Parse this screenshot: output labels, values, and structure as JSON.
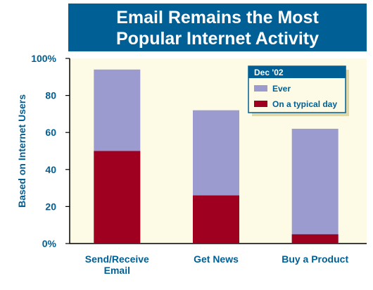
{
  "title_lines": [
    "Email Remains the Most",
    "Popular Internet Activity"
  ],
  "colors": {
    "title_bg": "#005f94",
    "title_text": "#ffffff",
    "plot_bg": "#fdfbe6",
    "ever": "#9b9bcf",
    "typical": "#a0001f",
    "axis_text": "#005f94",
    "legend_header_bg": "#005f94",
    "legend_shadow": "#e0d8a8"
  },
  "chart_data": {
    "type": "bar",
    "stacked": "overlay",
    "categories": [
      [
        "Send/Receive",
        "Email"
      ],
      [
        "Get News"
      ],
      [
        "Buy a Product"
      ]
    ],
    "series": [
      {
        "name": "Ever",
        "values": [
          94,
          72,
          62
        ],
        "color": "#9b9bcf"
      },
      {
        "name": "On a typical day",
        "values": [
          50,
          26,
          5
        ],
        "color": "#a0001f"
      }
    ],
    "ylabel": "Based on Internet Users",
    "ylim": [
      0,
      100
    ],
    "yticks": [
      {
        "value": 0,
        "label": "0%"
      },
      {
        "value": 20,
        "label": "20"
      },
      {
        "value": 40,
        "label": "40"
      },
      {
        "value": 60,
        "label": "60"
      },
      {
        "value": 80,
        "label": "80"
      },
      {
        "value": 100,
        "label": "100%"
      }
    ],
    "legend": {
      "title": "Dec '02",
      "position": "top-right"
    },
    "grid": false
  }
}
